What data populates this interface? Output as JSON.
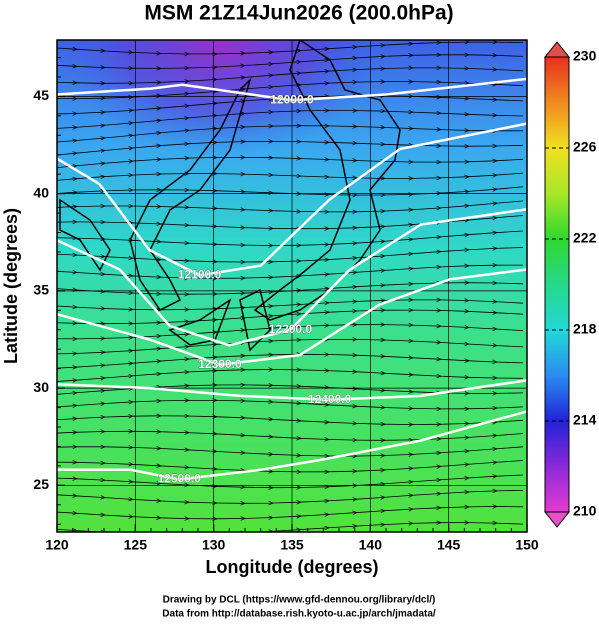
{
  "chart_data": {
    "type": "contour-map",
    "title": "MSM 21Z14Jun2026 (200.0hPa)",
    "xlabel": "Longitude (degrees)",
    "ylabel": "Latitude  (degrees)",
    "xlim": [
      120,
      150
    ],
    "ylim": [
      22.6,
      47.9
    ],
    "xticks": [
      120,
      125,
      130,
      135,
      140,
      145,
      150
    ],
    "yticks": [
      25,
      30,
      35,
      40,
      45
    ],
    "grid": true,
    "contour_color": "#ffffff",
    "contours": [
      {
        "level": 12000,
        "label": "12000.0",
        "lon": [
          120,
          126,
          128,
          135,
          141,
          150
        ],
        "lat": [
          45.1,
          45.4,
          45.6,
          44.8,
          45.1,
          45.9
        ]
      },
      {
        "level": 12100,
        "label": "12100.0",
        "lon": [
          120,
          122.7,
          125.9,
          129.1,
          133,
          137.4,
          141.9,
          150
        ],
        "lat": [
          41.8,
          40.5,
          37.1,
          35.8,
          36.3,
          39.7,
          42.3,
          43.6
        ]
      },
      {
        "level": 12200,
        "label": "12200.0",
        "lon": [
          120,
          124,
          127.2,
          131,
          134.9,
          138.7,
          143.2,
          150
        ],
        "lat": [
          37.6,
          36.1,
          33.2,
          32.2,
          33,
          36.1,
          38.4,
          39.2
        ]
      },
      {
        "level": 12300,
        "label": "12300.0",
        "lon": [
          120,
          125.9,
          130.4,
          135.5,
          140.6,
          145.1,
          150
        ],
        "lat": [
          33.8,
          32.5,
          31.2,
          31.7,
          34.3,
          35.6,
          36.1
        ]
      },
      {
        "level": 12400,
        "label": "12400.0",
        "lon": [
          120,
          125.9,
          131.7,
          137.4,
          143.2,
          150
        ],
        "lat": [
          30.2,
          30,
          29.6,
          29.4,
          29.6,
          30.4
        ]
      },
      {
        "level": 12500,
        "label": "12500.0",
        "lon": [
          120,
          124.7,
          127.8,
          133,
          136.8,
          143.2,
          150
        ],
        "lat": [
          25.8,
          25.8,
          25.3,
          25.8,
          26.3,
          27.3,
          28.8
        ]
      }
    ],
    "colorbar": {
      "lim": [
        210,
        230
      ],
      "ticks": [
        210,
        214,
        218,
        222,
        226,
        230
      ]
    },
    "credits": [
      "Drawing by DCL (https://www.gfd-dennou.org/library/dcl/)",
      "Data from http://database.rish.kyoto-u.ac.jp/arch/jmadata/"
    ]
  }
}
